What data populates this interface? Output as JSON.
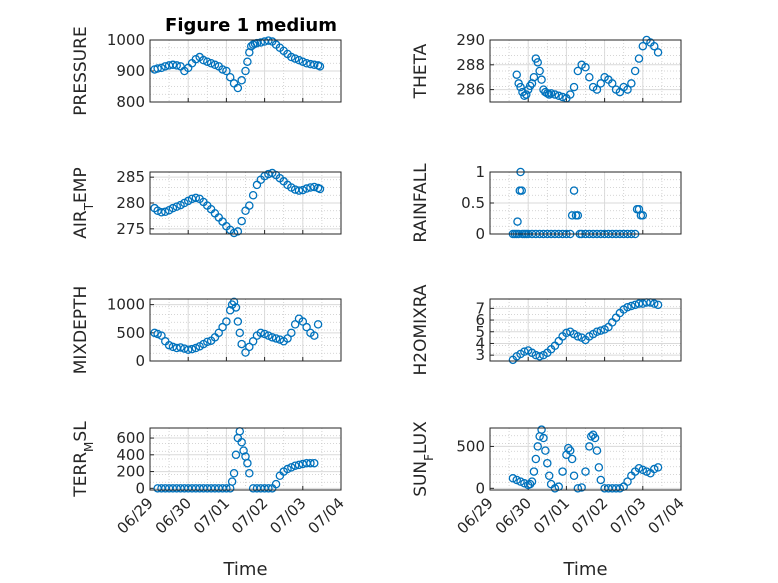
{
  "figure": {
    "title": "Figure 1 medium"
  },
  "chart_data": [
    {
      "type": "scatter",
      "ylabel": "PRESSURE",
      "xlabel": "",
      "ylim": [
        800,
        1000
      ],
      "yticks": [
        800,
        900,
        1000
      ],
      "yticklabels": [
        "800",
        "900",
        "1000"
      ],
      "xlim": [
        0,
        5
      ],
      "xticklabels": [],
      "x": [
        0.12,
        0.2,
        0.3,
        0.4,
        0.5,
        0.6,
        0.7,
        0.8,
        0.9,
        1.0,
        1.1,
        1.2,
        1.3,
        1.4,
        1.5,
        1.6,
        1.7,
        1.8,
        1.9,
        2.0,
        2.1,
        2.2,
        2.3,
        2.4,
        2.5,
        2.55,
        2.6,
        2.65,
        2.7,
        2.75,
        2.8,
        2.9,
        3.0,
        3.1,
        3.2,
        3.3,
        3.4,
        3.5,
        3.6,
        3.7,
        3.8,
        3.9,
        4.0,
        4.1,
        4.2,
        4.3,
        4.4,
        4.45
      ],
      "y": [
        905,
        908,
        910,
        915,
        918,
        920,
        918,
        915,
        900,
        910,
        925,
        938,
        945,
        935,
        930,
        925,
        920,
        915,
        905,
        900,
        880,
        860,
        845,
        870,
        900,
        930,
        960,
        980,
        985,
        988,
        990,
        992,
        995,
        998,
        995,
        985,
        975,
        965,
        955,
        945,
        940,
        935,
        930,
        925,
        922,
        920,
        918,
        915
      ]
    },
    {
      "type": "scatter",
      "ylabel": "THETA",
      "xlabel": "",
      "ylim": [
        285,
        290
      ],
      "yticks": [
        286,
        288,
        290
      ],
      "yticklabels": [
        "286",
        "288",
        "290"
      ],
      "xlim": [
        0,
        5
      ],
      "xticklabels": [],
      "x": [
        0.7,
        0.75,
        0.8,
        0.85,
        0.9,
        0.95,
        1.0,
        1.05,
        1.1,
        1.15,
        1.2,
        1.25,
        1.3,
        1.35,
        1.4,
        1.45,
        1.5,
        1.55,
        1.6,
        1.7,
        1.8,
        1.9,
        2.0,
        2.1,
        2.2,
        2.3,
        2.4,
        2.5,
        2.6,
        2.7,
        2.8,
        2.9,
        3.0,
        3.1,
        3.2,
        3.3,
        3.4,
        3.5,
        3.6,
        3.7,
        3.8,
        3.9,
        4.0,
        4.1,
        4.2,
        4.3,
        4.4
      ],
      "y": [
        287.2,
        286.5,
        286.2,
        285.8,
        285.5,
        285.6,
        286.0,
        286.3,
        286.5,
        287.0,
        288.5,
        288.2,
        287.5,
        286.8,
        286.0,
        285.8,
        285.7,
        285.6,
        285.7,
        285.6,
        285.5,
        285.4,
        285.3,
        285.6,
        286.2,
        287.5,
        288.0,
        287.8,
        287.0,
        286.2,
        286.0,
        286.5,
        287.0,
        286.8,
        286.5,
        286.0,
        285.8,
        286.2,
        286.0,
        286.5,
        287.5,
        288.5,
        289.5,
        290.0,
        289.8,
        289.5,
        289.0
      ]
    },
    {
      "type": "scatter",
      "ylabel": "AIR_TEMP",
      "xlabel": "",
      "ylim": [
        274,
        286
      ],
      "yticks": [
        275,
        280,
        285
      ],
      "yticklabels": [
        "275",
        "280",
        "285"
      ],
      "xlim": [
        0,
        5
      ],
      "xticklabels": [],
      "x": [
        0.12,
        0.2,
        0.3,
        0.4,
        0.5,
        0.6,
        0.7,
        0.8,
        0.9,
        1.0,
        1.1,
        1.2,
        1.3,
        1.4,
        1.5,
        1.6,
        1.7,
        1.8,
        1.9,
        2.0,
        2.1,
        2.2,
        2.3,
        2.4,
        2.5,
        2.6,
        2.7,
        2.8,
        2.9,
        3.0,
        3.1,
        3.2,
        3.3,
        3.4,
        3.5,
        3.6,
        3.7,
        3.8,
        3.9,
        4.0,
        4.1,
        4.2,
        4.3,
        4.4,
        4.45
      ],
      "y": [
        279,
        278.5,
        278.2,
        278.3,
        278.6,
        279,
        279.3,
        279.6,
        280,
        280.4,
        280.8,
        281,
        280.8,
        280.2,
        279.5,
        278.8,
        278,
        277.2,
        276.4,
        275.5,
        274.8,
        274.2,
        274.5,
        276.5,
        278.5,
        279.5,
        281.5,
        283.5,
        284.5,
        285.2,
        285.6,
        285.8,
        285.4,
        284.8,
        284.2,
        283.5,
        283,
        282.6,
        282.4,
        282.5,
        282.8,
        283,
        283.1,
        282.9,
        282.7
      ]
    },
    {
      "type": "scatter",
      "ylabel": "RAINFALL",
      "xlabel": "",
      "ylim": [
        0,
        1
      ],
      "yticks": [
        0,
        0.5,
        1
      ],
      "yticklabels": [
        "0",
        "0.5",
        "1"
      ],
      "xlim": [
        0,
        5
      ],
      "xticklabels": [],
      "x": [
        0.6,
        0.65,
        0.7,
        0.72,
        0.75,
        0.78,
        0.8,
        0.83,
        0.85,
        0.9,
        0.95,
        1.0,
        1.1,
        1.2,
        1.3,
        1.4,
        1.5,
        1.6,
        1.7,
        1.8,
        1.9,
        2.0,
        2.1,
        2.15,
        2.2,
        2.25,
        2.3,
        2.35,
        2.4,
        2.5,
        2.6,
        2.7,
        2.8,
        2.9,
        3.0,
        3.1,
        3.2,
        3.3,
        3.4,
        3.5,
        3.6,
        3.7,
        3.8,
        3.85,
        3.9,
        3.95,
        4.0
      ],
      "y": [
        0,
        0,
        0,
        0.2,
        0,
        0.7,
        1.0,
        0.7,
        0,
        0,
        0,
        0,
        0,
        0,
        0,
        0,
        0,
        0,
        0,
        0,
        0,
        0,
        0,
        0.3,
        0.7,
        0.3,
        0.3,
        0,
        0,
        0,
        0,
        0,
        0,
        0,
        0,
        0,
        0,
        0,
        0,
        0,
        0,
        0,
        0,
        0.4,
        0.4,
        0.3,
        0.3
      ]
    },
    {
      "type": "scatter",
      "ylabel": "MIXDEPTH",
      "xlabel": "",
      "ylim": [
        0,
        1100
      ],
      "yticks": [
        0,
        500,
        1000
      ],
      "yticklabels": [
        "0",
        "500",
        "1000"
      ],
      "xlim": [
        0,
        5
      ],
      "xticklabels": [],
      "x": [
        0.12,
        0.2,
        0.3,
        0.4,
        0.5,
        0.6,
        0.7,
        0.8,
        0.9,
        1.0,
        1.1,
        1.2,
        1.3,
        1.4,
        1.5,
        1.6,
        1.7,
        1.8,
        1.9,
        2.0,
        2.1,
        2.15,
        2.2,
        2.25,
        2.3,
        2.35,
        2.4,
        2.5,
        2.6,
        2.7,
        2.8,
        2.9,
        3.0,
        3.1,
        3.2,
        3.3,
        3.4,
        3.5,
        3.6,
        3.7,
        3.8,
        3.9,
        4.0,
        4.1,
        4.2,
        4.3,
        4.4
      ],
      "y": [
        500,
        480,
        450,
        350,
        280,
        250,
        230,
        240,
        220,
        200,
        210,
        230,
        260,
        300,
        340,
        360,
        420,
        500,
        600,
        700,
        900,
        1000,
        1050,
        950,
        700,
        500,
        300,
        150,
        250,
        350,
        450,
        500,
        480,
        450,
        420,
        400,
        380,
        350,
        400,
        500,
        650,
        750,
        700,
        600,
        500,
        450,
        650
      ]
    },
    {
      "type": "scatter",
      "ylabel": "H2OMIXRA",
      "xlabel": "",
      "ylim": [
        2.5,
        7.8
      ],
      "yticks": [
        3,
        4,
        5,
        6,
        7
      ],
      "yticklabels": [
        "3",
        "4",
        "5",
        "6",
        "7"
      ],
      "xlim": [
        0,
        5
      ],
      "xticklabels": [],
      "x": [
        0.6,
        0.7,
        0.8,
        0.9,
        1.0,
        1.1,
        1.2,
        1.3,
        1.4,
        1.5,
        1.6,
        1.7,
        1.8,
        1.9,
        2.0,
        2.1,
        2.2,
        2.3,
        2.4,
        2.5,
        2.6,
        2.7,
        2.8,
        2.9,
        3.0,
        3.1,
        3.2,
        3.3,
        3.4,
        3.5,
        3.6,
        3.7,
        3.8,
        3.9,
        4.0,
        4.1,
        4.2,
        4.3,
        4.4
      ],
      "y": [
        2.6,
        2.9,
        3.1,
        3.3,
        3.4,
        3.2,
        3.0,
        2.9,
        3.0,
        3.2,
        3.5,
        3.8,
        4.2,
        4.6,
        4.9,
        5.0,
        4.8,
        4.6,
        4.5,
        4.3,
        4.6,
        4.8,
        5.0,
        5.1,
        5.2,
        5.4,
        5.8,
        6.2,
        6.6,
        6.9,
        7.1,
        7.2,
        7.3,
        7.4,
        7.4,
        7.5,
        7.5,
        7.4,
        7.3
      ]
    },
    {
      "type": "scatter",
      "ylabel": "TERR_MSL",
      "xlabel": "Time",
      "ylim": [
        -20,
        720
      ],
      "yticks": [
        0,
        200,
        400,
        600
      ],
      "yticklabels": [
        "0",
        "200",
        "400",
        "600"
      ],
      "xlim": [
        0,
        5
      ],
      "xtickpos": [
        0,
        1,
        2,
        3,
        4,
        5
      ],
      "xticklabels": [
        "06/29",
        "06/30",
        "07/01",
        "07/02",
        "07/03",
        "07/04"
      ],
      "x": [
        0.2,
        0.3,
        0.4,
        0.5,
        0.6,
        0.7,
        0.8,
        0.9,
        1.0,
        1.1,
        1.2,
        1.3,
        1.4,
        1.5,
        1.6,
        1.7,
        1.8,
        1.9,
        2.0,
        2.1,
        2.15,
        2.2,
        2.25,
        2.3,
        2.35,
        2.4,
        2.45,
        2.5,
        2.55,
        2.6,
        2.7,
        2.8,
        2.9,
        3.0,
        3.1,
        3.2,
        3.3,
        3.4,
        3.5,
        3.6,
        3.7,
        3.8,
        3.9,
        4.0,
        4.1,
        4.2,
        4.3
      ],
      "y": [
        0,
        0,
        0,
        0,
        0,
        0,
        0,
        0,
        0,
        0,
        0,
        0,
        0,
        0,
        0,
        0,
        0,
        0,
        0,
        0,
        80,
        180,
        400,
        600,
        680,
        550,
        450,
        380,
        300,
        180,
        0,
        0,
        0,
        0,
        0,
        0,
        50,
        150,
        200,
        230,
        250,
        270,
        280,
        290,
        300,
        300,
        300
      ]
    },
    {
      "type": "scatter",
      "ylabel": "SUN_FLUX",
      "xlabel": "Time",
      "ylim": [
        -20,
        720
      ],
      "yticks": [
        0,
        500
      ],
      "yticklabels": [
        "0",
        "500"
      ],
      "xlim": [
        0,
        5
      ],
      "xtickpos": [
        0,
        1,
        2,
        3,
        4,
        5
      ],
      "xticklabels": [
        "06/29",
        "06/30",
        "07/01",
        "07/02",
        "07/03",
        "07/04"
      ],
      "x": [
        0.6,
        0.7,
        0.8,
        0.9,
        1.0,
        1.05,
        1.1,
        1.15,
        1.2,
        1.25,
        1.3,
        1.35,
        1.4,
        1.45,
        1.5,
        1.55,
        1.6,
        1.7,
        1.8,
        1.9,
        2.0,
        2.05,
        2.1,
        2.15,
        2.2,
        2.3,
        2.4,
        2.5,
        2.6,
        2.65,
        2.7,
        2.75,
        2.8,
        2.85,
        2.9,
        3.0,
        3.1,
        3.2,
        3.3,
        3.4,
        3.5,
        3.6,
        3.7,
        3.8,
        3.9,
        4.0,
        4.1,
        4.2,
        4.3,
        4.4
      ],
      "y": [
        120,
        100,
        80,
        60,
        40,
        50,
        80,
        200,
        350,
        500,
        620,
        700,
        600,
        450,
        300,
        150,
        50,
        0,
        20,
        200,
        400,
        480,
        450,
        350,
        150,
        0,
        10,
        200,
        500,
        620,
        640,
        600,
        450,
        250,
        100,
        0,
        0,
        0,
        0,
        0,
        20,
        80,
        150,
        200,
        240,
        220,
        200,
        180,
        230,
        250
      ]
    }
  ]
}
